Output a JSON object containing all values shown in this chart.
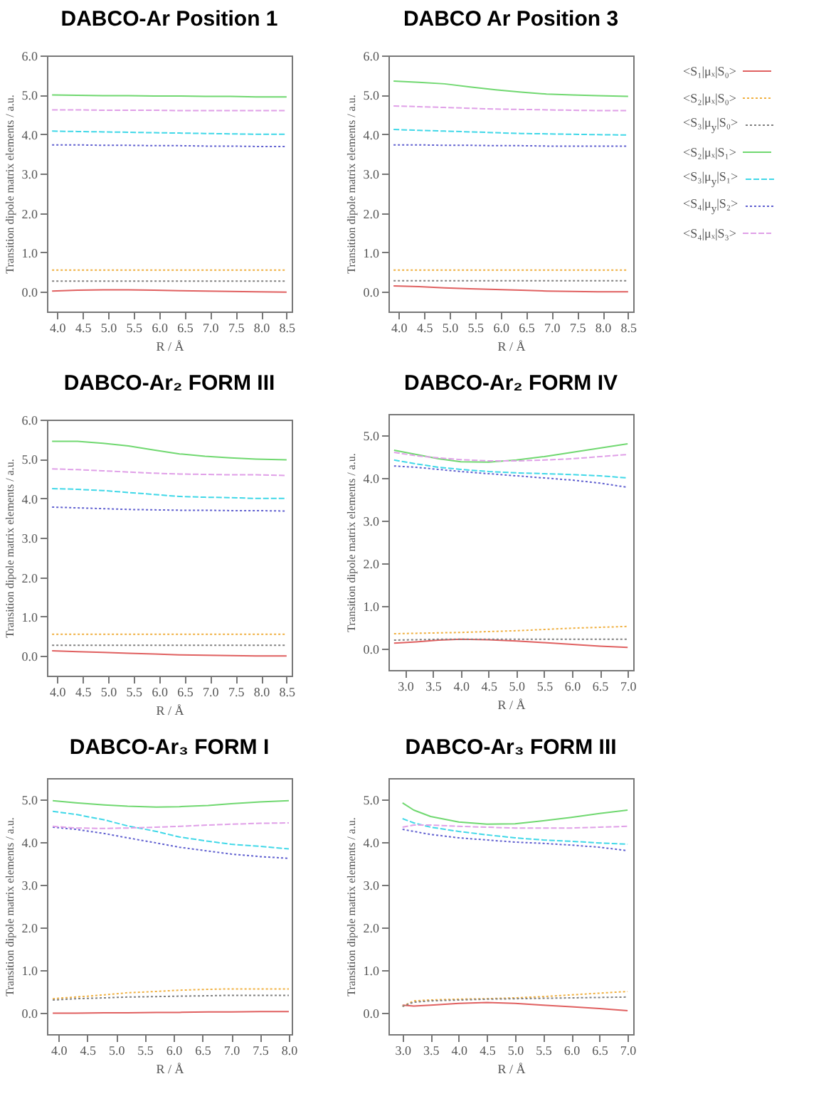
{
  "chart_data": [
    {
      "type": "line",
      "title": "DABCO-Ar Position 1",
      "xlabel": "R / Å",
      "ylabel": "Transition dipole matrix elements / a.u.",
      "x": [
        3.9,
        4.4,
        4.9,
        5.4,
        5.9,
        6.4,
        6.9,
        7.4,
        7.9,
        8.5
      ],
      "xlim": [
        3.8,
        8.6
      ],
      "xticks": [
        {
          "value": 4,
          "label": "4.0"
        },
        {
          "value": 4.5,
          "label": "4.5"
        },
        {
          "value": 5,
          "label": "5.0"
        },
        {
          "value": 5.5,
          "label": "5.5"
        },
        {
          "value": 6,
          "label": "6.0"
        },
        {
          "value": 6.5,
          "label": "6.5"
        },
        {
          "value": 7,
          "label": "7.0"
        },
        {
          "value": 7.5,
          "label": "7.5"
        },
        {
          "value": 8,
          "label": "8.0"
        },
        {
          "value": 8.5,
          "label": "8.5"
        }
      ],
      "ylim": [
        -0.5,
        6
      ],
      "yticks": [
        {
          "value": 0,
          "label": "0.0"
        },
        {
          "value": 1,
          "label": "1.0"
        },
        {
          "value": 2,
          "label": "2.0"
        },
        {
          "value": 3,
          "label": "3.0"
        },
        {
          "value": 4,
          "label": "4.0"
        },
        {
          "value": 5,
          "label": "5.0"
        },
        {
          "value": 6,
          "label": "6.0"
        }
      ],
      "series": [
        {
          "color": "#e06060",
          "line_style": "solid",
          "values": [
            0.02,
            0.04,
            0.05,
            0.05,
            0.04,
            0.03,
            0.02,
            0.01,
            0.0,
            -0.01
          ]
        },
        {
          "color": "#f0b040",
          "line_style": "dotted",
          "values": [
            0.55,
            0.55,
            0.55,
            0.55,
            0.55,
            0.55,
            0.55,
            0.55,
            0.55,
            0.55
          ]
        },
        {
          "color": "#808080",
          "line_style": "dotted",
          "values": [
            0.27,
            0.27,
            0.27,
            0.27,
            0.27,
            0.27,
            0.27,
            0.27,
            0.27,
            0.27
          ]
        },
        {
          "color": "#70d870",
          "line_style": "solid",
          "values": [
            5.0,
            4.99,
            4.98,
            4.98,
            4.97,
            4.97,
            4.96,
            4.96,
            4.95,
            4.95
          ]
        },
        {
          "color": "#40d8e8",
          "line_style": "dashed",
          "values": [
            4.08,
            4.07,
            4.06,
            4.05,
            4.04,
            4.03,
            4.02,
            4.01,
            4.0,
            4.0
          ]
        },
        {
          "color": "#6060d0",
          "line_style": "dotted",
          "values": [
            3.73,
            3.73,
            3.72,
            3.72,
            3.71,
            3.71,
            3.7,
            3.7,
            3.69,
            3.69
          ]
        },
        {
          "color": "#e0a0e8",
          "line_style": "dashed",
          "values": [
            4.62,
            4.62,
            4.61,
            4.61,
            4.61,
            4.6,
            4.6,
            4.6,
            4.6,
            4.6
          ]
        }
      ]
    },
    {
      "type": "line",
      "title": "DABCO Ar Position 3",
      "xlabel": "R / Å",
      "ylabel": "Transition dipole matrix elements / a.u.",
      "legend": "right",
      "x": [
        3.9,
        4.4,
        4.9,
        5.4,
        5.9,
        6.4,
        6.9,
        7.4,
        7.9,
        8.5
      ],
      "xlim": [
        3.8,
        8.6
      ],
      "xticks": [
        {
          "value": 4,
          "label": "4.0"
        },
        {
          "value": 4.5,
          "label": "4.5"
        },
        {
          "value": 5,
          "label": "5.0"
        },
        {
          "value": 5.5,
          "label": "5.5"
        },
        {
          "value": 6,
          "label": "6.0"
        },
        {
          "value": 6.5,
          "label": "6.5"
        },
        {
          "value": 7,
          "label": "7.0"
        },
        {
          "value": 7.5,
          "label": "7.5"
        },
        {
          "value": 8,
          "label": "8.0"
        },
        {
          "value": 8.5,
          "label": "8.5"
        }
      ],
      "ylim": [
        -0.5,
        6
      ],
      "yticks": [
        {
          "value": 0,
          "label": "0.0"
        },
        {
          "value": 1,
          "label": "1.0"
        },
        {
          "value": 2,
          "label": "2.0"
        },
        {
          "value": 3,
          "label": "3.0"
        },
        {
          "value": 4,
          "label": "4.0"
        },
        {
          "value": 5,
          "label": "5.0"
        },
        {
          "value": 6,
          "label": "6.0"
        }
      ],
      "series": [
        {
          "name": "<S₁|μₓ|S₀>",
          "color": "#e06060",
          "line_style": "solid",
          "values": [
            0.15,
            0.13,
            0.1,
            0.08,
            0.06,
            0.04,
            0.02,
            0.01,
            0.0,
            0.0
          ]
        },
        {
          "name": "<S₂|μₓ|S₀>",
          "color": "#f0b040",
          "line_style": "dotted",
          "values": [
            0.55,
            0.55,
            0.55,
            0.55,
            0.55,
            0.55,
            0.55,
            0.55,
            0.55,
            0.55
          ]
        },
        {
          "name": "<S₃|μ$_{y}$|S₀>",
          "color": "#808080",
          "line_style": "dotted",
          "values": [
            0.28,
            0.28,
            0.28,
            0.28,
            0.28,
            0.28,
            0.28,
            0.28,
            0.28,
            0.28
          ]
        },
        {
          "name": "<S₂|μₓ|S₁>",
          "color": "#70d870",
          "line_style": "solid",
          "values": [
            5.35,
            5.32,
            5.28,
            5.2,
            5.13,
            5.07,
            5.02,
            5.0,
            4.98,
            4.96
          ]
        },
        {
          "name": "<S₃|μ$_{y}$|S₁>",
          "color": "#40d8e8",
          "line_style": "dashed",
          "values": [
            4.12,
            4.1,
            4.08,
            4.06,
            4.04,
            4.02,
            4.01,
            4.0,
            3.99,
            3.98
          ]
        },
        {
          "name": "<S₄|μ$_{y}$|S₂>",
          "color": "#6060d0",
          "line_style": "dotted",
          "values": [
            3.73,
            3.73,
            3.72,
            3.72,
            3.71,
            3.71,
            3.7,
            3.7,
            3.7,
            3.7
          ]
        },
        {
          "name": "<S₄|μₓ|S₃>",
          "color": "#e0a0e8",
          "line_style": "dashed",
          "values": [
            4.72,
            4.7,
            4.68,
            4.66,
            4.64,
            4.63,
            4.62,
            4.61,
            4.6,
            4.6
          ]
        }
      ]
    },
    {
      "type": "line",
      "title": "DABCO-Ar₂ FORM III",
      "xlabel": "R / Å",
      "ylabel": "Transition dipole matrix elements / a.u.",
      "x": [
        3.9,
        4.4,
        4.9,
        5.4,
        5.9,
        6.4,
        6.9,
        7.4,
        7.9,
        8.5
      ],
      "xlim": [
        3.8,
        8.6
      ],
      "xticks": [
        {
          "value": 4,
          "label": "4.0"
        },
        {
          "value": 4.5,
          "label": "4.5"
        },
        {
          "value": 5,
          "label": "5.0"
        },
        {
          "value": 5.5,
          "label": "5.5"
        },
        {
          "value": 6,
          "label": "6.0"
        },
        {
          "value": 6.5,
          "label": "6.5"
        },
        {
          "value": 7,
          "label": "7.0"
        },
        {
          "value": 7.5,
          "label": "7.5"
        },
        {
          "value": 8,
          "label": "8.0"
        },
        {
          "value": 8.5,
          "label": "8.5"
        }
      ],
      "ylim": [
        -0.5,
        6
      ],
      "yticks": [
        {
          "value": 0,
          "label": "0.0"
        },
        {
          "value": 1,
          "label": "1.0"
        },
        {
          "value": 2,
          "label": "2.0"
        },
        {
          "value": 3,
          "label": "3.0"
        },
        {
          "value": 4,
          "label": "4.0"
        },
        {
          "value": 5,
          "label": "5.0"
        },
        {
          "value": 6,
          "label": "6.0"
        }
      ],
      "series": [
        {
          "color": "#e06060",
          "line_style": "solid",
          "values": [
            0.13,
            0.11,
            0.09,
            0.07,
            0.05,
            0.03,
            0.02,
            0.01,
            0.0,
            0.0
          ]
        },
        {
          "color": "#f0b040",
          "line_style": "dotted",
          "values": [
            0.55,
            0.55,
            0.55,
            0.55,
            0.55,
            0.55,
            0.55,
            0.55,
            0.55,
            0.55
          ]
        },
        {
          "color": "#808080",
          "line_style": "dotted",
          "values": [
            0.27,
            0.27,
            0.27,
            0.27,
            0.27,
            0.27,
            0.27,
            0.27,
            0.27,
            0.27
          ]
        },
        {
          "color": "#70d870",
          "line_style": "solid",
          "values": [
            5.45,
            5.45,
            5.4,
            5.33,
            5.23,
            5.13,
            5.07,
            5.03,
            5.0,
            4.98
          ]
        },
        {
          "color": "#40d8e8",
          "line_style": "dashed",
          "values": [
            4.25,
            4.23,
            4.2,
            4.15,
            4.1,
            4.05,
            4.03,
            4.02,
            4.0,
            4.0
          ]
        },
        {
          "color": "#6060d0",
          "line_style": "dotted",
          "values": [
            3.78,
            3.76,
            3.74,
            3.72,
            3.71,
            3.7,
            3.7,
            3.69,
            3.69,
            3.68
          ]
        },
        {
          "color": "#e0a0e8",
          "line_style": "dashed",
          "values": [
            4.75,
            4.73,
            4.7,
            4.67,
            4.64,
            4.62,
            4.61,
            4.6,
            4.6,
            4.58
          ]
        }
      ]
    },
    {
      "type": "line",
      "title": "DABCO-Ar₂ FORM IV",
      "xlabel": "R / Å",
      "ylabel": "Transition dipole matrix elements / a.u.",
      "x": [
        2.8,
        3.2,
        3.6,
        4.0,
        4.5,
        5.0,
        5.5,
        6.0,
        6.5,
        7.0
      ],
      "xlim": [
        2.7,
        7.1
      ],
      "xticks": [
        {
          "value": 3,
          "label": "3.0"
        },
        {
          "value": 3.5,
          "label": "3.5"
        },
        {
          "value": 4,
          "label": "4.0"
        },
        {
          "value": 4.5,
          "label": "4.5"
        },
        {
          "value": 5,
          "label": "5.0"
        },
        {
          "value": 5.5,
          "label": "5.5"
        },
        {
          "value": 6,
          "label": "6.0"
        },
        {
          "value": 6.5,
          "label": "6.5"
        },
        {
          "value": 7,
          "label": "7.0"
        }
      ],
      "ylim": [
        -0.5,
        5.5
      ],
      "yticks": [
        {
          "value": 0,
          "label": "0.0"
        },
        {
          "value": 1,
          "label": "1.0"
        },
        {
          "value": 2,
          "label": "2.0"
        },
        {
          "value": 3,
          "label": "3.0"
        },
        {
          "value": 4,
          "label": "4.0"
        },
        {
          "value": 5,
          "label": "5.0"
        }
      ],
      "series": [
        {
          "color": "#e06060",
          "line_style": "solid",
          "values": [
            0.13,
            0.16,
            0.2,
            0.22,
            0.21,
            0.18,
            0.14,
            0.1,
            0.06,
            0.03
          ]
        },
        {
          "color": "#f0b040",
          "line_style": "dotted",
          "values": [
            0.35,
            0.36,
            0.37,
            0.38,
            0.4,
            0.42,
            0.45,
            0.48,
            0.5,
            0.52
          ]
        },
        {
          "color": "#808080",
          "line_style": "dotted",
          "values": [
            0.2,
            0.21,
            0.22,
            0.22,
            0.22,
            0.22,
            0.22,
            0.22,
            0.22,
            0.22
          ]
        },
        {
          "color": "#70d870",
          "line_style": "solid",
          "values": [
            4.65,
            4.55,
            4.45,
            4.38,
            4.37,
            4.42,
            4.5,
            4.6,
            4.7,
            4.8
          ]
        },
        {
          "color": "#40d8e8",
          "line_style": "dashed",
          "values": [
            4.42,
            4.33,
            4.25,
            4.2,
            4.15,
            4.12,
            4.1,
            4.08,
            4.05,
            4.0
          ]
        },
        {
          "color": "#6060d0",
          "line_style": "dotted",
          "values": [
            4.28,
            4.25,
            4.2,
            4.15,
            4.1,
            4.05,
            4.0,
            3.95,
            3.88,
            3.78
          ]
        },
        {
          "color": "#e0a0e8",
          "line_style": "dashed",
          "values": [
            4.6,
            4.52,
            4.47,
            4.43,
            4.4,
            4.4,
            4.42,
            4.45,
            4.5,
            4.55
          ]
        }
      ]
    },
    {
      "type": "line",
      "title": "DABCO-Ar₃ FORM I",
      "xlabel": "R / Å",
      "ylabel": "Transition dipole matrix elements / a.u.",
      "x": [
        3.9,
        4.3,
        4.8,
        5.2,
        5.7,
        6.1,
        6.6,
        7.0,
        7.5,
        8.0
      ],
      "xlim": [
        3.8,
        8.05
      ],
      "xticks": [
        {
          "value": 4,
          "label": "4.0"
        },
        {
          "value": 4.5,
          "label": "4.5"
        },
        {
          "value": 5,
          "label": "5.0"
        },
        {
          "value": 5.5,
          "label": "5.5"
        },
        {
          "value": 6,
          "label": "6.0"
        },
        {
          "value": 6.5,
          "label": "6.5"
        },
        {
          "value": 7,
          "label": "7.0"
        },
        {
          "value": 7.5,
          "label": "7.5"
        },
        {
          "value": 8,
          "label": "8.0"
        }
      ],
      "ylim": [
        -0.5,
        5.5
      ],
      "yticks": [
        {
          "value": 0,
          "label": "0.0"
        },
        {
          "value": 1,
          "label": "1.0"
        },
        {
          "value": 2,
          "label": "2.0"
        },
        {
          "value": 3,
          "label": "3.0"
        },
        {
          "value": 4,
          "label": "4.0"
        },
        {
          "value": 5,
          "label": "5.0"
        }
      ],
      "series": [
        {
          "color": "#e06060",
          "line_style": "solid",
          "values": [
            -0.01,
            -0.01,
            0.0,
            0.0,
            0.01,
            0.01,
            0.02,
            0.02,
            0.03,
            0.03
          ]
        },
        {
          "color": "#f0b040",
          "line_style": "dotted",
          "values": [
            0.33,
            0.37,
            0.42,
            0.47,
            0.5,
            0.53,
            0.55,
            0.56,
            0.56,
            0.56
          ]
        },
        {
          "color": "#808080",
          "line_style": "dotted",
          "values": [
            0.3,
            0.33,
            0.35,
            0.37,
            0.38,
            0.39,
            0.4,
            0.41,
            0.41,
            0.41
          ]
        },
        {
          "color": "#70d870",
          "line_style": "solid",
          "values": [
            4.97,
            4.92,
            4.87,
            4.84,
            4.82,
            4.83,
            4.86,
            4.9,
            4.94,
            4.97
          ]
        },
        {
          "color": "#40d8e8",
          "line_style": "dashed",
          "values": [
            4.72,
            4.65,
            4.52,
            4.38,
            4.25,
            4.12,
            4.02,
            3.95,
            3.9,
            3.84
          ]
        },
        {
          "color": "#6060d0",
          "line_style": "dotted",
          "values": [
            4.35,
            4.3,
            4.2,
            4.1,
            3.98,
            3.88,
            3.79,
            3.72,
            3.66,
            3.62
          ]
        },
        {
          "color": "#e0a0e8",
          "line_style": "dashed",
          "values": [
            4.37,
            4.33,
            4.32,
            4.33,
            4.35,
            4.37,
            4.4,
            4.42,
            4.44,
            4.45
          ]
        }
      ]
    },
    {
      "type": "line",
      "title": "DABCO-Ar₃ FORM III",
      "xlabel": "R / Å",
      "ylabel": "Transition dipole matrix elements / a.u.",
      "x": [
        3.0,
        3.2,
        3.5,
        4.0,
        4.5,
        5.0,
        5.5,
        6.0,
        6.5,
        7.0
      ],
      "xlim": [
        2.75,
        7.1
      ],
      "xticks": [
        {
          "value": 3,
          "label": "3.0"
        },
        {
          "value": 3.5,
          "label": "3.5"
        },
        {
          "value": 4,
          "label": "4.0"
        },
        {
          "value": 4.5,
          "label": "4.5"
        },
        {
          "value": 5,
          "label": "5.0"
        },
        {
          "value": 5.5,
          "label": "5.5"
        },
        {
          "value": 6,
          "label": "6.0"
        },
        {
          "value": 6.5,
          "label": "6.5"
        },
        {
          "value": 7,
          "label": "7.0"
        }
      ],
      "ylim": [
        -0.5,
        5.5
      ],
      "yticks": [
        {
          "value": 0,
          "label": "0.0"
        },
        {
          "value": 1,
          "label": "1.0"
        },
        {
          "value": 2,
          "label": "2.0"
        },
        {
          "value": 3,
          "label": "3.0"
        },
        {
          "value": 4,
          "label": "4.0"
        },
        {
          "value": 5,
          "label": "5.0"
        }
      ],
      "series": [
        {
          "color": "#e06060",
          "line_style": "solid",
          "values": [
            0.18,
            0.16,
            0.18,
            0.22,
            0.24,
            0.22,
            0.18,
            0.14,
            0.1,
            0.05
          ]
        },
        {
          "color": "#f0b040",
          "line_style": "dotted",
          "values": [
            0.15,
            0.28,
            0.3,
            0.32,
            0.33,
            0.35,
            0.38,
            0.42,
            0.46,
            0.5
          ]
        },
        {
          "color": "#808080",
          "line_style": "dotted",
          "values": [
            0.15,
            0.25,
            0.28,
            0.3,
            0.32,
            0.33,
            0.34,
            0.35,
            0.36,
            0.37
          ]
        },
        {
          "color": "#70d870",
          "line_style": "solid",
          "values": [
            4.92,
            4.75,
            4.6,
            4.47,
            4.42,
            4.43,
            4.5,
            4.58,
            4.67,
            4.75
          ]
        },
        {
          "color": "#40d8e8",
          "line_style": "dashed",
          "values": [
            4.55,
            4.45,
            4.35,
            4.25,
            4.17,
            4.1,
            4.05,
            4.02,
            3.98,
            3.95
          ]
        },
        {
          "color": "#6060d0",
          "line_style": "dotted",
          "values": [
            4.3,
            4.25,
            4.18,
            4.1,
            4.05,
            4.0,
            3.97,
            3.93,
            3.88,
            3.8
          ]
        },
        {
          "color": "#e0a0e8",
          "line_style": "dashed",
          "values": [
            4.35,
            4.4,
            4.4,
            4.37,
            4.35,
            4.33,
            4.33,
            4.33,
            4.35,
            4.37
          ]
        }
      ]
    }
  ]
}
